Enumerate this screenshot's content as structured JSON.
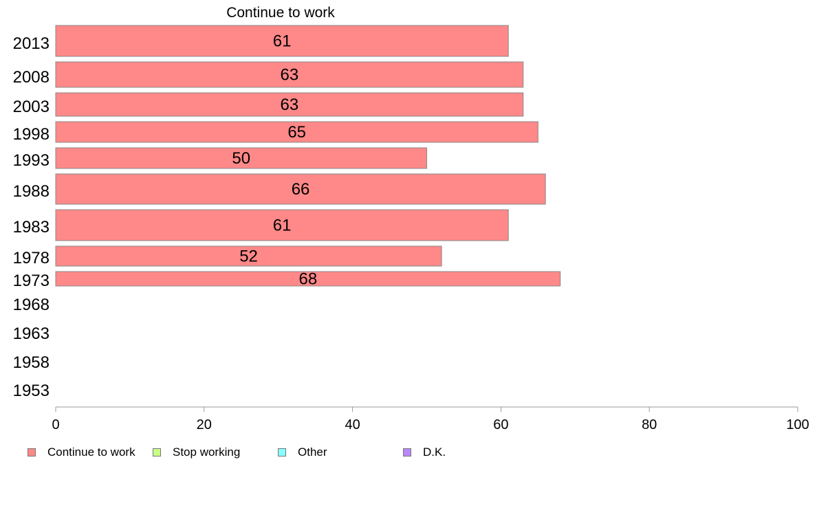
{
  "chart_data": {
    "type": "bar",
    "orientation": "horizontal",
    "title": "Continue to work",
    "categories": [
      "2013",
      "2008",
      "2003",
      "1998",
      "1993",
      "1988",
      "1983",
      "1978",
      "1973",
      "1968",
      "1963",
      "1958",
      "1953"
    ],
    "series": [
      {
        "name": "Continue to work",
        "color": "#ff8888",
        "values": [
          61,
          63,
          63,
          65,
          50,
          66,
          61,
          52,
          68,
          null,
          null,
          null,
          null
        ],
        "data_labels": [
          "61",
          "63",
          "63",
          "65",
          "50",
          "66",
          "61",
          "52",
          "68",
          "",
          "",
          "",
          ""
        ]
      }
    ],
    "xlim": [
      0,
      100
    ],
    "xticks": [
      0,
      20,
      40,
      60,
      80,
      100
    ],
    "xtick_labels": [
      "0",
      "20",
      "40",
      "60",
      "80",
      "100"
    ],
    "grid": false,
    "legend_position": "bottom-left",
    "legend": [
      {
        "label": "Continue to work",
        "color": "#ff8888"
      },
      {
        "label": "Stop working",
        "color": "#c8ff88"
      },
      {
        "label": "Other",
        "color": "#88ffff"
      },
      {
        "label": "D.K.",
        "color": "#b888ff"
      }
    ]
  }
}
